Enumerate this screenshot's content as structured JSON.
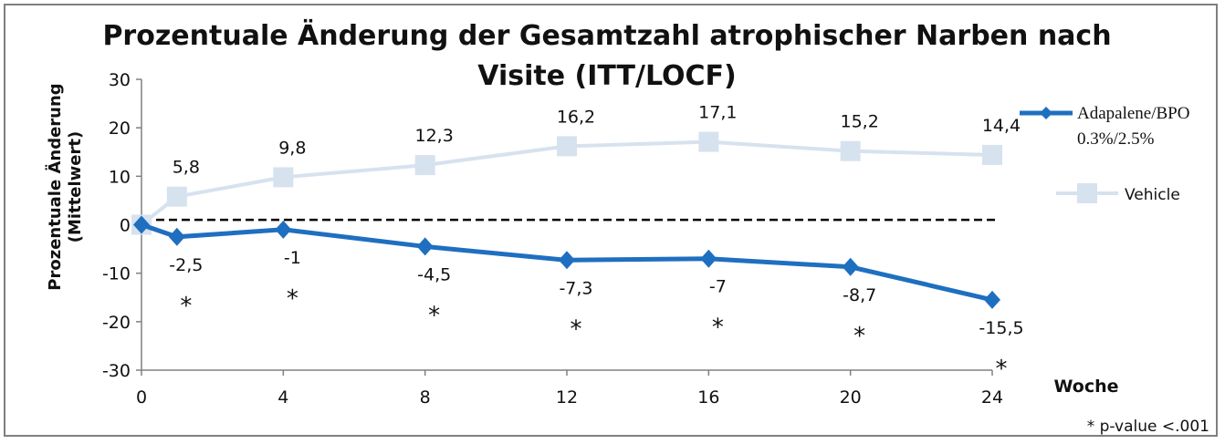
{
  "chart_data": {
    "type": "line",
    "title": "Prozentuale Änderung der Gesamtzahl atrophischer Narben nach Visite (ITT/LOCF)",
    "xlabel": "Woche",
    "ylabel_line1": "Prozentuale Änderung",
    "ylabel_line2": "(Mittelwert)",
    "ylim": [
      -30,
      30
    ],
    "xlim": [
      0,
      24
    ],
    "xticks": [
      0,
      4,
      8,
      12,
      16,
      20,
      24
    ],
    "yticks": [
      30,
      20,
      10,
      0,
      -10,
      -20,
      -30
    ],
    "series": [
      {
        "name_line1": "Adapalene/BPO",
        "name_line2": "0.3%/2.5%",
        "color": "#1f6fc0",
        "marker": "diamond",
        "x": [
          0,
          1,
          4,
          8,
          12,
          16,
          20,
          24
        ],
        "y": [
          0,
          -2.5,
          -1,
          -4.5,
          -7.3,
          -7,
          -8.7,
          -15.5
        ],
        "labels": [
          "",
          "-2,5",
          "-1",
          "-4,5",
          "-7,3",
          "-7",
          "-8,7",
          "-15,5"
        ]
      },
      {
        "name": "Vehicle",
        "color": "#d7e2ef",
        "marker": "square",
        "x": [
          0,
          1,
          4,
          8,
          12,
          16,
          20,
          24
        ],
        "y": [
          0,
          5.8,
          9.8,
          12.3,
          16.2,
          17.1,
          15.2,
          14.4
        ],
        "labels": [
          "",
          "5,8",
          "9,8",
          "12,3",
          "16,2",
          "17,1",
          "15,2",
          "14,4"
        ]
      }
    ],
    "asterisk_x": [
      1,
      4,
      8,
      12,
      16,
      20,
      24
    ],
    "asterisk_text": "*",
    "reference_line_y": 1,
    "footnote": "* p-value <.001"
  }
}
